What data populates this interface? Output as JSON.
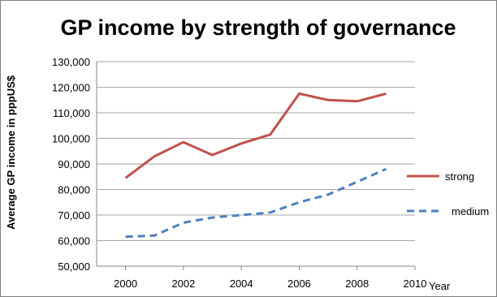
{
  "chart_data": {
    "type": "line",
    "title": "GP income by strength of governance",
    "xlabel": "Year",
    "ylabel": "Average GP income in  pppUS$",
    "xlim": [
      1999,
      2010
    ],
    "ylim": [
      50000,
      130000
    ],
    "x_ticks": [
      2000,
      2002,
      2004,
      2006,
      2008,
      2010
    ],
    "x_tick_labels": [
      "2000",
      "2002",
      "2004",
      "2006",
      "2008",
      "2010"
    ],
    "y_ticks": [
      50000,
      60000,
      70000,
      80000,
      90000,
      100000,
      110000,
      120000,
      130000
    ],
    "y_tick_labels": [
      "50,000",
      "60,000",
      "70,000",
      "80,000",
      "90,000",
      "100,000",
      "110,000",
      "120,000",
      "130,000"
    ],
    "grid": "horizontal",
    "legend_position": "right",
    "series": [
      {
        "name": "strong",
        "color": "#c0504d",
        "style": "solid",
        "x": [
          2000,
          2001,
          2002,
          2003,
          2004,
          2005,
          2006,
          2007,
          2008,
          2009
        ],
        "values": [
          84500,
          93000,
          98500,
          93500,
          98000,
          101500,
          117500,
          115000,
          114500,
          117500
        ]
      },
      {
        "name": "medium",
        "color": "#4f81bd",
        "style": "dashed",
        "x": [
          2000,
          2001,
          2002,
          2003,
          2004,
          2005,
          2006,
          2007,
          2008,
          2009
        ],
        "values": [
          61500,
          62000,
          67000,
          69000,
          70000,
          71000,
          75000,
          78000,
          83000,
          88000
        ]
      }
    ]
  }
}
